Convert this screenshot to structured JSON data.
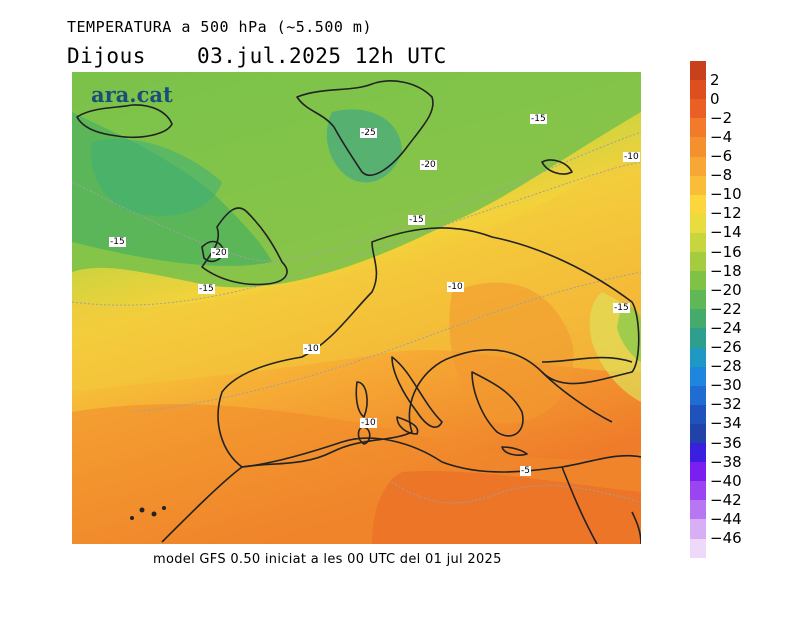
{
  "header": {
    "title": "TEMPERATURA a 500 hPa (~5.500 m)",
    "day": "Dijous",
    "datetime": "03.jul.2025 12h UTC"
  },
  "map": {
    "brand": "ara.cat",
    "contour_labels": [
      "-25",
      "-15",
      "-20",
      "-10",
      "-15",
      "-15",
      "-20",
      "-15",
      "-10",
      "-15",
      "-10",
      "-10",
      "-5"
    ]
  },
  "legend": {
    "values": [
      "2",
      "0",
      "−2",
      "−4",
      "−6",
      "−8",
      "−10",
      "−12",
      "−14",
      "−16",
      "−18",
      "−20",
      "−22",
      "−24",
      "−26",
      "−28",
      "−30",
      "−32",
      "−34",
      "−36",
      "−38",
      "−40",
      "−42",
      "−44",
      "−46"
    ],
    "colors": [
      "#c8411c",
      "#dd4f1f",
      "#ea5f24",
      "#f27a2a",
      "#f5902f",
      "#f7a733",
      "#f9bd38",
      "#fbd63c",
      "#e8dc3f",
      "#c7d63f",
      "#a5cc3e",
      "#80c245",
      "#5fb855",
      "#45ab6a",
      "#2e9f8e",
      "#2098c4",
      "#1f86e0",
      "#1f6dd3",
      "#2052bd",
      "#2142a8",
      "#3a1fe0",
      "#7a1fef",
      "#9a45f0",
      "#b877f2",
      "#d8aef5",
      "#efd9fa"
    ]
  },
  "footer": {
    "text": "model GFS 0.50 iniciat a les 00 UTC del 01 jul 2025"
  }
}
